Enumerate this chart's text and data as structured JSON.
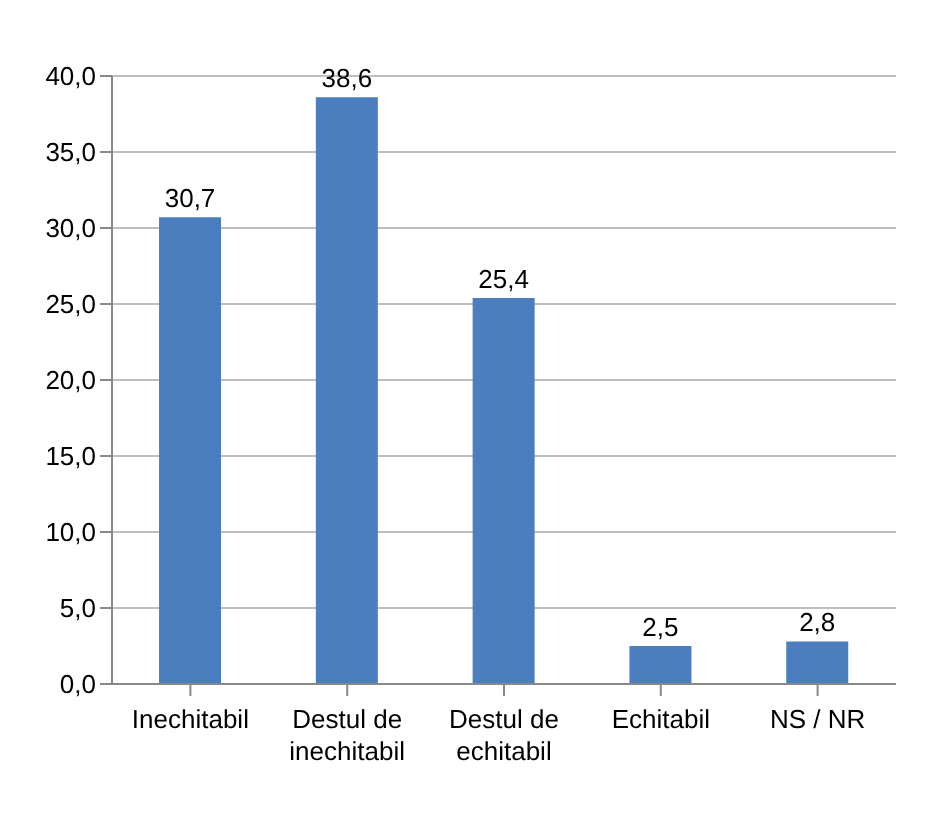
{
  "chart_data": {
    "type": "bar",
    "categories": [
      "Inechitabil",
      "Destul de inechitabil",
      "Destul de echitabil",
      "Echitabil",
      "NS / NR"
    ],
    "values": [
      30.7,
      38.6,
      25.4,
      2.5,
      2.8
    ],
    "color": "#4a7ebf",
    "value_labels": [
      "30,7",
      "38,6",
      "25,4",
      "2,5",
      "2,8"
    ],
    "ylim": [
      0,
      40
    ],
    "yticks": [
      {
        "value": 0,
        "label": "0,0"
      },
      {
        "value": 5,
        "label": "5,0"
      },
      {
        "value": 10,
        "label": "10,0"
      },
      {
        "value": 15,
        "label": "15,0"
      },
      {
        "value": 20,
        "label": "20,0"
      },
      {
        "value": 25,
        "label": "25,0"
      },
      {
        "value": 30,
        "label": "30,0"
      },
      {
        "value": 35,
        "label": "35,0"
      },
      {
        "value": 40,
        "label": "40,0"
      }
    ],
    "grid": "y"
  }
}
